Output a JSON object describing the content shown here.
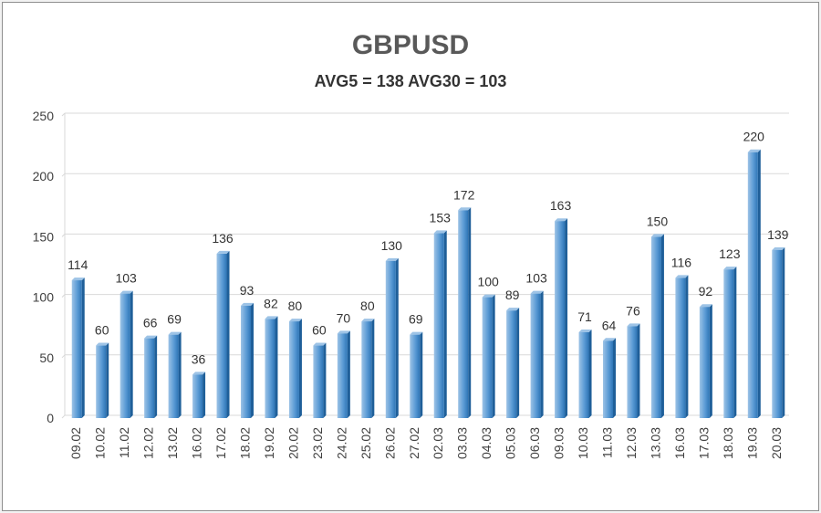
{
  "chart_data": {
    "type": "bar",
    "title": "GBPUSD",
    "subtitle": "AVG5 = 138 AVG30 = 103",
    "xlabel": "",
    "ylabel": "",
    "ylim": [
      0,
      250
    ],
    "yticks": [
      0,
      50,
      100,
      150,
      200,
      250
    ],
    "grid": true,
    "categories": [
      "09.02",
      "10.02",
      "11.02",
      "12.02",
      "13.02",
      "16.02",
      "17.02",
      "18.02",
      "19.02",
      "20.02",
      "23.02",
      "24.02",
      "25.02",
      "26.02",
      "27.02",
      "02.03",
      "03.03",
      "04.03",
      "05.03",
      "06.03",
      "09.03",
      "10.03",
      "11.03",
      "12.03",
      "13.03",
      "16.03",
      "17.03",
      "18.03",
      "19.03",
      "20.03"
    ],
    "values": [
      114,
      60,
      103,
      66,
      69,
      36,
      136,
      93,
      82,
      80,
      60,
      70,
      80,
      130,
      69,
      153,
      172,
      100,
      89,
      103,
      163,
      71,
      64,
      76,
      150,
      116,
      92,
      123,
      220,
      139
    ]
  },
  "colors": {
    "bar_light": "#9dc3e6",
    "bar_mid": "#5b9bd5",
    "bar_dark": "#2e75b6",
    "bar_side": "#1f5f99"
  }
}
